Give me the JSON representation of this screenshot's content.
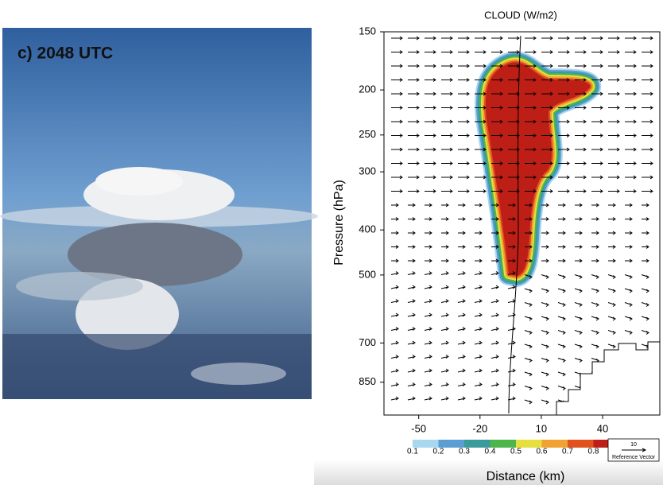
{
  "photo": {
    "label": "c) 2048 UTC"
  },
  "chart_data": {
    "type": "cross_section",
    "title": "CLOUD (W/m2)",
    "xlabel": "Distance (km)",
    "ylabel": "Pressure (hPa)",
    "xlim": [
      -67,
      68
    ],
    "xticks": [
      -50,
      -20,
      10,
      40
    ],
    "ylim": [
      1000,
      150
    ],
    "yticks": [
      150,
      200,
      250,
      300,
      400,
      500,
      700,
      850
    ],
    "log_y": true,
    "colorbar": {
      "levels": [
        0.1,
        0.2,
        0.3,
        0.4,
        0.5,
        0.6,
        0.7,
        0.8
      ],
      "colors": [
        "#a9d7f0",
        "#5b9fd2",
        "#3a9a9c",
        "#4cb64c",
        "#e6e03e",
        "#f0a232",
        "#e0521e",
        "#bd1f17"
      ]
    },
    "reference_vector": {
      "value": 10,
      "label": "Reference Vector"
    }
  }
}
